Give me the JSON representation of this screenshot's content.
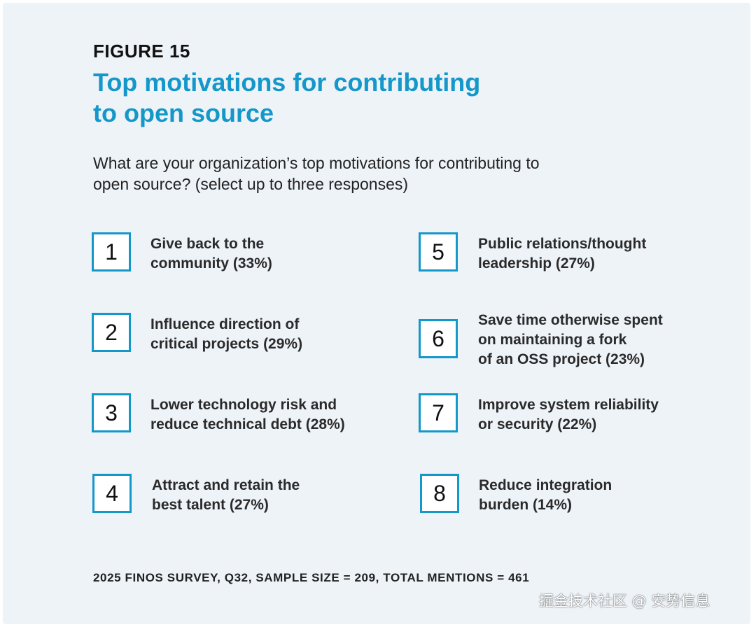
{
  "figure_label": "FIGURE 15",
  "title_lines": [
    "Top motivations for contributing",
    "to open source"
  ],
  "question_lines": [
    "What are your organization’s top motivations for contributing to",
    "open source? (select up to three responses)"
  ],
  "items": [
    {
      "number": "1",
      "lines": [
        "Give back to the",
        "community (33%)"
      ],
      "percent": 33
    },
    {
      "number": "2",
      "lines": [
        "Influence direction of",
        "critical projects (29%)"
      ],
      "percent": 29
    },
    {
      "number": "3",
      "lines": [
        "Lower technology risk and",
        "reduce technical debt (28%)"
      ],
      "percent": 28
    },
    {
      "number": "4",
      "lines": [
        "Attract and retain the",
        "best talent (27%)"
      ],
      "percent": 27
    },
    {
      "number": "5",
      "lines": [
        "Public relations/thought",
        "leadership (27%)"
      ],
      "percent": 27
    },
    {
      "number": "6",
      "lines": [
        "Save time otherwise spent",
        "on maintaining a fork",
        "of an OSS project (23%)"
      ],
      "percent": 23
    },
    {
      "number": "7",
      "lines": [
        "Improve system reliability",
        "or security (22%)"
      ],
      "percent": 22
    },
    {
      "number": "8",
      "lines": [
        "Reduce integration",
        "burden (14%)"
      ],
      "percent": 14
    }
  ],
  "footer": "2025 FINOS SURVEY, Q32, SAMPLE SIZE = 209, TOTAL MENTIONS = 461",
  "watermark": "掘金技术社区 @ 安势信息",
  "colors": {
    "accent": "#1497c9",
    "background": "#eef3f8",
    "text": "#222222"
  }
}
